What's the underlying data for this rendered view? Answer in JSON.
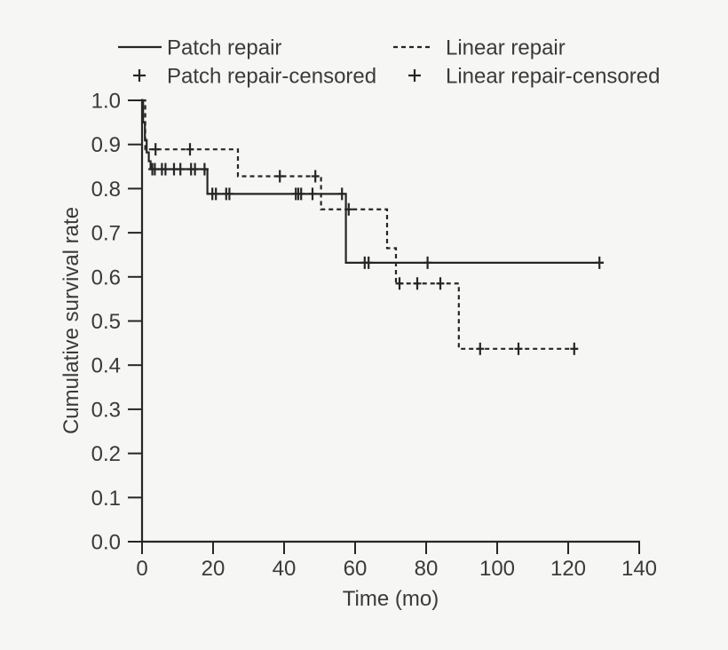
{
  "figure": {
    "background_color": "#f6f6f5",
    "line_color": "#262626",
    "text_color": "#3a3a3a"
  },
  "legend": {
    "items": [
      {
        "label": "Patch repair",
        "marker": "solid-line"
      },
      {
        "label": "Linear repair",
        "marker": "dashed-line"
      },
      {
        "label": "Patch repair-censored",
        "marker": "plus"
      },
      {
        "label": "Linear repair-censored",
        "marker": "plus"
      }
    ]
  },
  "chart_data": {
    "type": "line",
    "subtype": "kaplan_meier_step",
    "title": "",
    "xlabel": "Time (mo)",
    "ylabel": "Cumulative survival rate",
    "xlim": [
      0,
      140
    ],
    "ylim": [
      0.0,
      1.0
    ],
    "x_ticks": [
      0,
      20,
      40,
      60,
      80,
      100,
      120,
      140
    ],
    "y_ticks": [
      "1.0",
      "0.9",
      "0.8",
      "0.7",
      "0.6",
      "0.5",
      "0.4",
      "0.3",
      "0.2",
      "0.1",
      "0.0"
    ],
    "grid": false,
    "legend_position": "top",
    "series": [
      {
        "name": "Patch repair",
        "line_style": "solid",
        "steps": [
          [
            0,
            1.0
          ],
          [
            0.3,
            0.95
          ],
          [
            0.8,
            0.91
          ],
          [
            1.3,
            0.882
          ],
          [
            1.9,
            0.862
          ],
          [
            2.4,
            0.844
          ],
          [
            18.4,
            0.788
          ],
          [
            57.4,
            0.632
          ],
          [
            130,
            0.632
          ]
        ],
        "censored": [
          [
            2.9,
            0.844
          ],
          [
            3.6,
            0.844
          ],
          [
            5.6,
            0.844
          ],
          [
            6.6,
            0.844
          ],
          [
            9.0,
            0.844
          ],
          [
            10.8,
            0.844
          ],
          [
            13.8,
            0.844
          ],
          [
            14.9,
            0.844
          ],
          [
            17.6,
            0.844
          ],
          [
            19.8,
            0.788
          ],
          [
            20.8,
            0.788
          ],
          [
            23.7,
            0.788
          ],
          [
            24.6,
            0.788
          ],
          [
            43.3,
            0.788
          ],
          [
            44.0,
            0.788
          ],
          [
            44.8,
            0.788
          ],
          [
            48.0,
            0.788
          ],
          [
            56.3,
            0.788
          ],
          [
            62.7,
            0.632
          ],
          [
            63.8,
            0.632
          ],
          [
            80.4,
            0.632
          ],
          [
            128.8,
            0.632
          ]
        ]
      },
      {
        "name": "Linear repair",
        "line_style": "dashed",
        "steps": [
          [
            0,
            1.0
          ],
          [
            0.9,
            0.889
          ],
          [
            27.0,
            0.828
          ],
          [
            50.4,
            0.753
          ],
          [
            69.0,
            0.665
          ],
          [
            71.5,
            0.585
          ],
          [
            89.2,
            0.437
          ],
          [
            123,
            0.437
          ]
        ],
        "censored": [
          [
            3.8,
            0.889
          ],
          [
            13.5,
            0.889
          ],
          [
            38.8,
            0.828
          ],
          [
            48.8,
            0.828
          ],
          [
            58.2,
            0.753
          ],
          [
            72.5,
            0.585
          ],
          [
            77.5,
            0.585
          ],
          [
            84.0,
            0.585
          ],
          [
            95.2,
            0.437
          ],
          [
            106.0,
            0.437
          ],
          [
            121.7,
            0.437
          ]
        ]
      }
    ]
  }
}
